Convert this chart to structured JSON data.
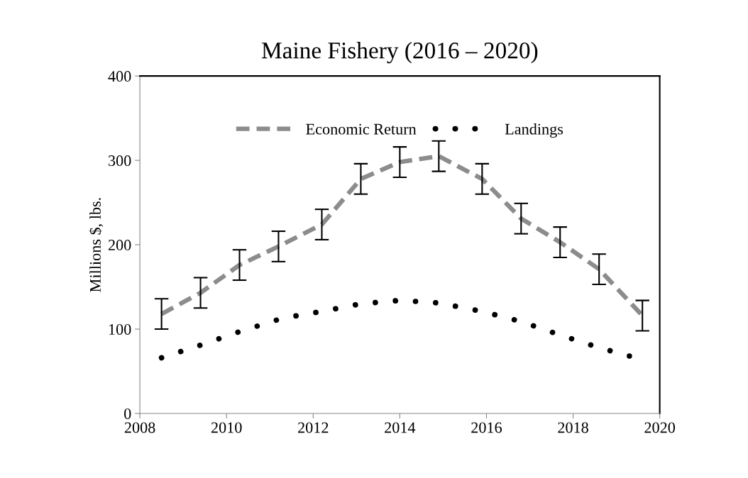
{
  "chart_data": {
    "type": "line",
    "title": "Maine Fishery (2016 – 2020)",
    "ylabel": "Millions $, lbs.",
    "xlim": [
      2008,
      2020
    ],
    "xticks": [
      2008,
      2010,
      2012,
      2014,
      2016,
      2018,
      2020
    ],
    "ylim": [
      0,
      400
    ],
    "yticks": [
      0,
      100,
      200,
      300,
      400
    ],
    "grid": false,
    "legend": "top",
    "marker": "none",
    "series": [
      {
        "name": "Economic Return",
        "color": "#8c8c8c",
        "line_style": "dashed",
        "x": [
          2008.5,
          2009.4,
          2010.3,
          2011.2,
          2012.2,
          2013.1,
          2014.0,
          2014.9,
          2015.9,
          2016.8,
          2017.7,
          2018.6,
          2019.6
        ],
        "values": [
          118,
          143,
          176,
          198,
          224,
          278,
          298,
          305,
          278,
          231,
          203,
          171,
          116
        ],
        "errors": [
          18,
          18,
          18,
          18,
          18,
          18,
          18,
          18,
          18,
          18,
          18,
          18,
          18
        ]
      },
      {
        "name": "Landings",
        "color": "#000000",
        "line_style": "dotted",
        "x": [
          2008.5,
          2009.4,
          2010.3,
          2011.3,
          2012.2,
          2013.1,
          2014.0,
          2014.9,
          2015.9,
          2016.8,
          2017.7,
          2018.6,
          2019.3
        ],
        "values": [
          66,
          81,
          97,
          113,
          121,
          130,
          134,
          131,
          121,
          109,
          93,
          78,
          68
        ]
      }
    ]
  }
}
